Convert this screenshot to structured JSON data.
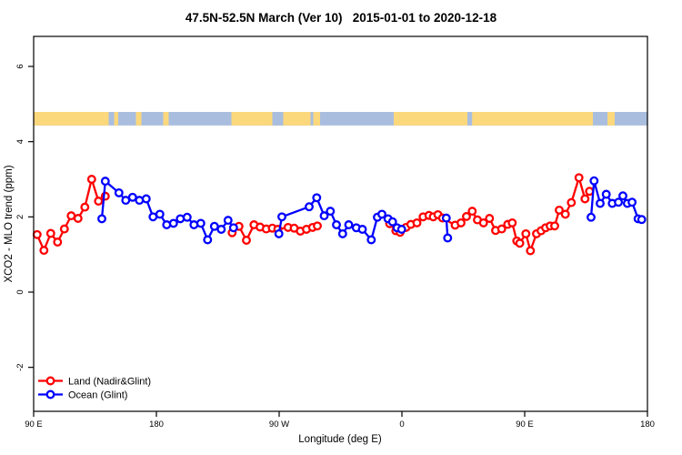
{
  "chart_data": {
    "type": "line",
    "title": "47.5N-52.5N March (Ver 10)   2015-01-01 to 2020-12-18",
    "xlabel": "Longitude (deg E)",
    "ylabel": "XCO2 - MLO trend (ppm)",
    "x_domain": [
      90,
      540
    ],
    "y_domain": [
      -3.2,
      6.8
    ],
    "x_ticks": [
      {
        "value": 90,
        "label": "90 E"
      },
      {
        "value": 180,
        "label": "180"
      },
      {
        "value": 270,
        "label": "90 W"
      },
      {
        "value": 360,
        "label": "0"
      },
      {
        "value": 450,
        "label": "90 E"
      },
      {
        "value": 540,
        "label": "180"
      }
    ],
    "y_ticks": [
      -2,
      0,
      2,
      4,
      6
    ],
    "grid": false,
    "surface_band": {
      "comment": "land/ocean strip drawn across plot near y=4.6",
      "y_range": [
        4.43,
        4.79
      ],
      "ocean_color": "#a9bedf",
      "land_color": "#fcd87c",
      "land_segments": [
        [
          90,
          145
        ],
        [
          149,
          152
        ],
        [
          165,
          169
        ],
        [
          185,
          189
        ],
        [
          235,
          293
        ],
        [
          295,
          300
        ],
        [
          354,
          500
        ],
        [
          510.7,
          516
        ]
      ],
      "ocean_patches": [
        [
          265,
          273
        ],
        [
          408,
          411.5
        ]
      ]
    },
    "series": [
      {
        "name": "Land (Nadir&Glint)",
        "color": "#ff0000",
        "marker": "open-circle",
        "segments": [
          [
            [
              92.5,
              1.53
            ],
            [
              97.5,
              1.11
            ],
            [
              102.5,
              1.56
            ],
            [
              107.5,
              1.33
            ],
            [
              112.5,
              1.68
            ],
            [
              117.5,
              2.03
            ],
            [
              122.5,
              1.96
            ],
            [
              127.5,
              2.26
            ],
            [
              132.5,
              3.0
            ],
            [
              137.5,
              2.42
            ],
            [
              142.5,
              2.55
            ]
          ],
          [
            [
              235.5,
              1.58
            ],
            [
              240.5,
              1.75
            ],
            [
              246,
              1.38
            ],
            [
              251.5,
              1.79
            ],
            [
              256,
              1.73
            ],
            [
              260.5,
              1.68
            ],
            [
              265,
              1.7
            ],
            [
              269,
              1.67
            ],
            [
              276.5,
              1.72
            ],
            [
              281,
              1.7
            ],
            [
              285.5,
              1.62
            ],
            [
              290,
              1.67
            ],
            [
              294.5,
              1.72
            ],
            [
              298,
              1.76
            ]
          ],
          [
            [
              351,
              1.82
            ],
            [
              355.5,
              1.63
            ],
            [
              358.7,
              1.59
            ],
            [
              363,
              1.72
            ],
            [
              366.5,
              1.8
            ],
            [
              371,
              1.84
            ],
            [
              375.5,
              2.0
            ],
            [
              379.8,
              2.04
            ],
            [
              383,
              2.0
            ],
            [
              386.4,
              2.06
            ],
            [
              389.8,
              1.97
            ],
            [
              399,
              1.78
            ],
            [
              403.3,
              1.84
            ],
            [
              407.3,
              2.01
            ],
            [
              411.5,
              2.15
            ],
            [
              415.3,
              1.92
            ],
            [
              419.8,
              1.84
            ],
            [
              424.2,
              1.96
            ],
            [
              428.7,
              1.64
            ],
            [
              433.1,
              1.68
            ],
            [
              437.5,
              1.8
            ],
            [
              440.9,
              1.84
            ],
            [
              444.2,
              1.36
            ],
            [
              446.4,
              1.3
            ],
            [
              450.9,
              1.55
            ],
            [
              454.2,
              1.1
            ],
            [
              458.7,
              1.55
            ],
            [
              462,
              1.63
            ],
            [
              465.3,
              1.71
            ],
            [
              468.7,
              1.76
            ],
            [
              472,
              1.76
            ],
            [
              475.3,
              2.18
            ],
            [
              479.8,
              2.07
            ],
            [
              484.2,
              2.38
            ],
            [
              489.8,
              3.04
            ],
            [
              494.2,
              2.48
            ],
            [
              497.5,
              2.68
            ]
          ]
        ]
      },
      {
        "name": "Ocean (Glint)",
        "color": "#0000ff",
        "marker": "open-circle",
        "segments": [
          [
            [
              140,
              1.95
            ],
            [
              142.5,
              2.95
            ],
            [
              152.5,
              2.64
            ],
            [
              157.5,
              2.44
            ],
            [
              162.5,
              2.52
            ],
            [
              167.5,
              2.44
            ],
            [
              172.5,
              2.48
            ],
            [
              177.5,
              2.0
            ],
            [
              182.5,
              2.07
            ],
            [
              187.5,
              1.79
            ],
            [
              192.5,
              1.83
            ],
            [
              197.5,
              1.95
            ],
            [
              202.5,
              1.99
            ],
            [
              207.5,
              1.79
            ],
            [
              212.5,
              1.83
            ],
            [
              217.5,
              1.39
            ],
            [
              222.5,
              1.75
            ],
            [
              227.5,
              1.67
            ],
            [
              232.5,
              1.91
            ],
            [
              236.5,
              1.71
            ]
          ],
          [
            [
              269.8,
              1.55
            ],
            [
              272,
              2.0
            ],
            [
              292,
              2.27
            ],
            [
              297.5,
              2.51
            ],
            [
              303,
              2.03
            ],
            [
              307.5,
              2.15
            ],
            [
              312,
              1.79
            ],
            [
              316.5,
              1.55
            ],
            [
              321,
              1.79
            ],
            [
              326.5,
              1.71
            ],
            [
              331,
              1.67
            ],
            [
              337.5,
              1.39
            ],
            [
              342,
              1.99
            ],
            [
              345.3,
              2.07
            ],
            [
              349.8,
              1.95
            ],
            [
              353.1,
              1.87
            ],
            [
              356.4,
              1.71
            ],
            [
              359.8,
              1.67
            ]
          ],
          [
            [
              392.5,
              1.97
            ],
            [
              393.5,
              1.44
            ]
          ],
          [
            [
              498.7,
              1.99
            ],
            [
              500.9,
              2.96
            ],
            [
              505.3,
              2.36
            ],
            [
              509.8,
              2.6
            ],
            [
              514.2,
              2.36
            ],
            [
              518.7,
              2.39
            ],
            [
              522,
              2.56
            ],
            [
              525.3,
              2.36
            ],
            [
              528.7,
              2.39
            ],
            [
              533.1,
              1.95
            ],
            [
              535.8,
              1.93
            ]
          ]
        ]
      }
    ],
    "legend": {
      "position": "bottom-left",
      "box": false,
      "entries": [
        {
          "label": "Land (Nadir&Glint)",
          "color": "#ff0000"
        },
        {
          "label": "Ocean (Glint)",
          "color": "#0000ff"
        }
      ]
    }
  }
}
